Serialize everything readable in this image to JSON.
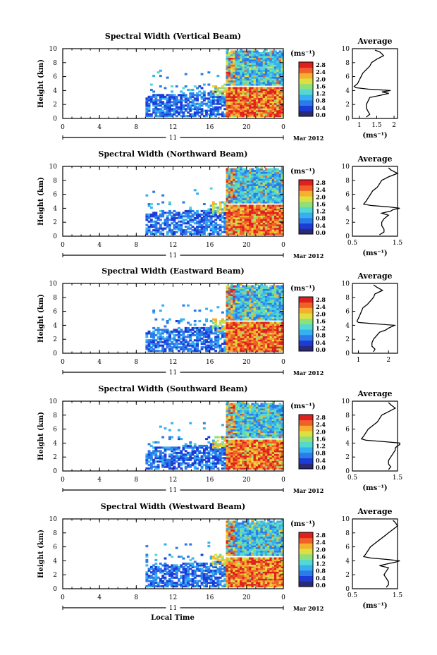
{
  "colors": {
    "colorscale": [
      "#2a2a78",
      "#1c3cd8",
      "#2d7be8",
      "#35b0f0",
      "#55d8d0",
      "#8ee07a",
      "#dde040",
      "#f5b030",
      "#f06028",
      "#e02020"
    ],
    "profile_line": "#000000"
  },
  "date_label": "Mar 2012",
  "day_label": "11",
  "xlabel": "Local Time",
  "chart_data": [
    {
      "type": "heatmap",
      "title": "Spectral Width (Vertical Beam)",
      "ylabel": "Height (km)",
      "xlim": [
        0,
        24
      ],
      "ylim": [
        0,
        10
      ],
      "xticks": [
        "0",
        "4",
        "8",
        "12",
        "16",
        "20",
        "0"
      ],
      "yticks": [
        "0",
        "2",
        "4",
        "6",
        "8",
        "10"
      ],
      "colorbar": {
        "unit": "(ms⁻¹)",
        "ticks": [
          "2.8",
          "2.4",
          "2.0",
          "1.6",
          "1.2",
          "0.8",
          "0.4",
          "0.0"
        ],
        "range": [
          0,
          2.8
        ]
      },
      "profile": {
        "title": "Average",
        "xlabel": "(ms⁻¹)",
        "xticks": [
          "1",
          "1.5",
          "2"
        ],
        "xlim": [
          0.8,
          2.1
        ],
        "heights": [
          0.2,
          0.6,
          1.0,
          1.5,
          2.0,
          2.5,
          3.0,
          3.3,
          3.6,
          3.8,
          4.0,
          4.2,
          4.4,
          4.6,
          5.0,
          5.5,
          6.0,
          6.5,
          7.0,
          7.5,
          8.0,
          8.5,
          9.0,
          9.5,
          9.8
        ],
        "values": [
          1.2,
          1.3,
          1.25,
          1.2,
          1.2,
          1.25,
          1.3,
          1.6,
          1.85,
          1.65,
          1.9,
          1.25,
          0.9,
          0.85,
          0.95,
          1.0,
          1.05,
          1.1,
          1.2,
          1.3,
          1.35,
          1.5,
          1.7,
          1.6,
          1.45
        ]
      }
    },
    {
      "type": "heatmap",
      "title": "Spectral Width (Northward Beam)",
      "ylabel": "Height (km)",
      "xlim": [
        0,
        24
      ],
      "ylim": [
        0,
        10
      ],
      "xticks": [
        "0",
        "4",
        "8",
        "12",
        "16",
        "20",
        "0"
      ],
      "yticks": [
        "0",
        "2",
        "4",
        "6",
        "8",
        "10"
      ],
      "colorbar": {
        "unit": "(ms⁻¹)",
        "ticks": [
          "2.8",
          "2.4",
          "2.0",
          "1.6",
          "1.2",
          "0.8",
          "0.4",
          "0.0"
        ],
        "range": [
          0,
          2.8
        ]
      },
      "profile": {
        "title": "Average",
        "xlabel": "(ms⁻¹)",
        "xticks": [
          "0.5",
          "1.5"
        ],
        "xlim": [
          0.5,
          1.5
        ],
        "heights": [
          0.2,
          0.6,
          1.0,
          1.5,
          2.0,
          2.5,
          3.0,
          3.3,
          3.6,
          3.8,
          4.0,
          4.2,
          4.4,
          4.6,
          5.0,
          5.5,
          6.0,
          6.5,
          7.0,
          7.5,
          8.0,
          8.5,
          9.0,
          9.5,
          9.8
        ],
        "values": [
          1.1,
          1.2,
          1.2,
          1.15,
          1.15,
          1.2,
          1.3,
          1.15,
          1.35,
          1.4,
          1.55,
          1.3,
          0.9,
          0.75,
          0.8,
          0.85,
          0.9,
          0.95,
          1.05,
          1.1,
          1.15,
          1.3,
          1.5,
          1.35,
          1.3
        ]
      }
    },
    {
      "type": "heatmap",
      "title": "Spectral Width (Eastward Beam)",
      "ylabel": "Height (km)",
      "xlim": [
        0,
        24
      ],
      "ylim": [
        0,
        10
      ],
      "xticks": [
        "0",
        "4",
        "8",
        "12",
        "16",
        "20",
        "0"
      ],
      "yticks": [
        "0",
        "2",
        "4",
        "6",
        "8",
        "10"
      ],
      "colorbar": {
        "unit": "(ms⁻¹)",
        "ticks": [
          "2.8",
          "2.4",
          "2.0",
          "1.6",
          "1.2",
          "0.8",
          "0.4",
          "0.0"
        ],
        "range": [
          0,
          2.8
        ]
      },
      "profile": {
        "title": "Average",
        "xlabel": "",
        "xticks": [
          "1",
          "2"
        ],
        "xlim": [
          0.8,
          2.3
        ],
        "heights": [
          0.2,
          0.6,
          1.0,
          1.5,
          2.0,
          2.5,
          3.0,
          3.3,
          3.6,
          3.8,
          4.0,
          4.2,
          4.4,
          4.6,
          5.0,
          5.5,
          6.0,
          6.5,
          7.0,
          7.5,
          8.0,
          8.5,
          9.0,
          9.5,
          9.8
        ],
        "values": [
          1.5,
          1.55,
          1.45,
          1.45,
          1.5,
          1.6,
          1.7,
          1.9,
          2.0,
          2.1,
          2.2,
          1.6,
          1.0,
          0.95,
          1.0,
          1.05,
          1.1,
          1.15,
          1.3,
          1.4,
          1.5,
          1.55,
          1.8,
          1.6,
          1.5
        ]
      }
    },
    {
      "type": "heatmap",
      "title": "Spectral Width (Southward Beam)",
      "ylabel": "Height (km)",
      "xlim": [
        0,
        24
      ],
      "ylim": [
        0,
        10
      ],
      "xticks": [
        "0",
        "4",
        "8",
        "12",
        "16",
        "20",
        "0"
      ],
      "yticks": [
        "0",
        "2",
        "4",
        "6",
        "8",
        "10"
      ],
      "colorbar": {
        "unit": "(ms⁻¹)",
        "ticks": [
          "2.8",
          "2.4",
          "2.0",
          "1.6",
          "1.2",
          "0.8",
          "0.4",
          "0.0"
        ],
        "range": [
          0,
          2.8
        ]
      },
      "profile": {
        "title": "Average",
        "xlabel": "(ms⁻¹)",
        "xticks": [
          "0.5",
          "1.5"
        ],
        "xlim": [
          0.5,
          1.5
        ],
        "heights": [
          0.2,
          0.6,
          1.0,
          1.5,
          2.0,
          2.5,
          3.0,
          3.3,
          3.6,
          3.8,
          4.0,
          4.2,
          4.4,
          4.6,
          5.0,
          5.5,
          6.0,
          6.5,
          7.0,
          7.5,
          8.0,
          8.5,
          9.0,
          9.5,
          9.8
        ],
        "values": [
          1.3,
          1.35,
          1.3,
          1.3,
          1.35,
          1.4,
          1.45,
          1.45,
          1.5,
          1.55,
          1.55,
          1.2,
          0.8,
          0.7,
          0.75,
          0.8,
          0.85,
          0.95,
          1.05,
          1.1,
          1.15,
          1.3,
          1.45,
          1.35,
          1.3
        ]
      }
    },
    {
      "type": "heatmap",
      "title": "Spectral Width (Westward Beam)",
      "ylabel": "Height (km)",
      "xlim": [
        0,
        24
      ],
      "ylim": [
        0,
        10
      ],
      "xticks": [
        "0",
        "4",
        "8",
        "12",
        "16",
        "20",
        "0"
      ],
      "yticks": [
        "0",
        "2",
        "4",
        "6",
        "8",
        "10"
      ],
      "colorbar": {
        "unit": "(ms⁻¹)",
        "ticks": [
          "2.8",
          "2.4",
          "2.0",
          "1.6",
          "1.2",
          "0.8",
          "0.4",
          "0.0"
        ],
        "range": [
          0,
          2.8
        ]
      },
      "profile": {
        "title": "Average",
        "xlabel": "(ms⁻¹)",
        "xticks": [
          "0.5",
          "1.5"
        ],
        "xlim": [
          0.5,
          1.5
        ],
        "heights": [
          0.2,
          0.6,
          1.0,
          1.5,
          2.0,
          2.5,
          3.0,
          3.3,
          3.6,
          3.8,
          4.0,
          4.2,
          4.4,
          4.6,
          5.0,
          5.5,
          6.0,
          6.5,
          7.0,
          7.5,
          8.0,
          8.5,
          9.0,
          9.5,
          9.8
        ],
        "values": [
          1.25,
          1.3,
          1.3,
          1.25,
          1.2,
          1.25,
          1.3,
          1.1,
          1.3,
          1.45,
          1.55,
          1.25,
          0.9,
          0.75,
          0.8,
          0.85,
          0.9,
          1.0,
          1.1,
          1.2,
          1.3,
          1.4,
          1.5,
          1.45,
          1.4
        ]
      }
    }
  ]
}
